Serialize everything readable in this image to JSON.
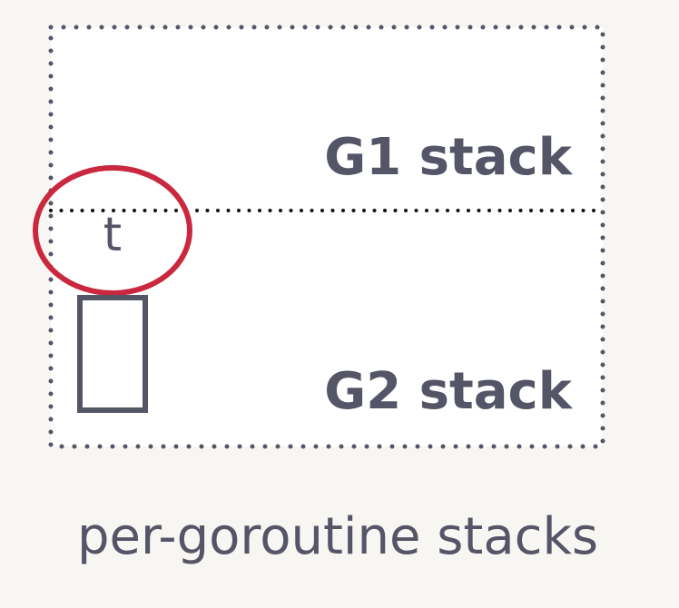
{
  "diagram": {
    "stacks": [
      {
        "label": "G1 stack"
      },
      {
        "label": "G2 stack"
      }
    ],
    "variable_label": "t",
    "caption": "per-goroutine stacks",
    "colors": {
      "background": "#f8f6f2",
      "box_fill": "#ffffff",
      "ink": "#555568",
      "highlight": "#c9283e"
    }
  }
}
